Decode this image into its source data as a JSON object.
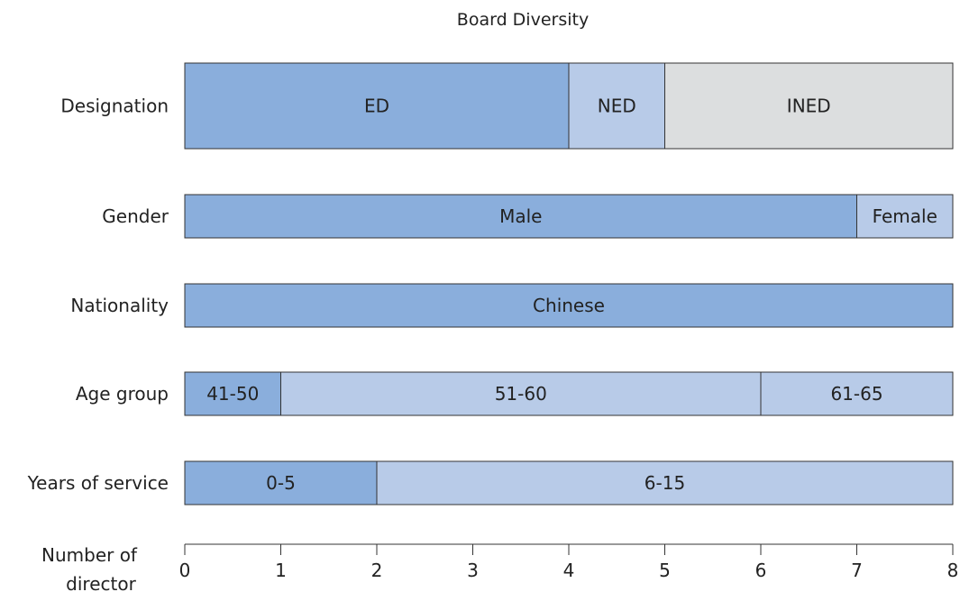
{
  "chart_data": {
    "type": "bar",
    "orientation": "horizontal",
    "stacked": true,
    "title": "Board Diversity",
    "xlabel": "Number of director",
    "xlim": [
      0,
      8
    ],
    "xticks": [
      0,
      1,
      2,
      3,
      4,
      5,
      6,
      7,
      8
    ],
    "grid": false,
    "legend": "none",
    "colors": {
      "dark": "#8aaedc",
      "light": "#b8cbe8",
      "grey": "#dcdedf",
      "border": "#333333"
    },
    "rows": [
      {
        "label": "Designation",
        "segments": [
          {
            "label": "ED",
            "value": 4,
            "color": "dark"
          },
          {
            "label": "NED",
            "value": 1,
            "color": "light"
          },
          {
            "label": "INED",
            "value": 3,
            "color": "grey"
          }
        ]
      },
      {
        "label": "Gender",
        "segments": [
          {
            "label": "Male",
            "value": 7,
            "color": "dark"
          },
          {
            "label": "Female",
            "value": 1,
            "color": "light"
          }
        ]
      },
      {
        "label": "Nationality",
        "segments": [
          {
            "label": "Chinese",
            "value": 8,
            "color": "dark"
          }
        ]
      },
      {
        "label": "Age group",
        "segments": [
          {
            "label": "41-50",
            "value": 1,
            "color": "dark"
          },
          {
            "label": "51-60",
            "value": 5,
            "color": "light"
          },
          {
            "label": "61-65",
            "value": 2,
            "color": "light"
          }
        ]
      },
      {
        "label": "Years of service",
        "segments": [
          {
            "label": "0-5",
            "value": 2,
            "color": "dark"
          },
          {
            "label": "6-15",
            "value": 6,
            "color": "light"
          }
        ]
      }
    ]
  }
}
